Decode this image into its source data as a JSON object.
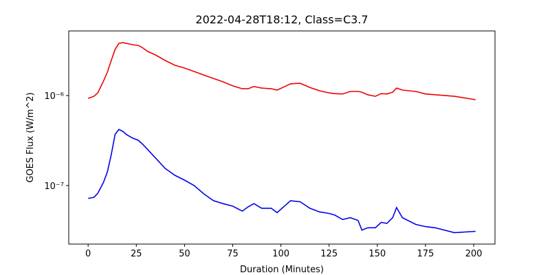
{
  "chart_data": {
    "type": "line",
    "title": "2022-04-28T18:12, Class=C3.7",
    "x_label": "Duration (Minutes)",
    "y_label": "GOES Flux (W/m^2)",
    "log_y": true,
    "x": [
      0,
      3,
      5,
      8,
      10,
      12,
      14,
      16,
      18,
      20,
      23,
      26,
      28,
      31,
      35,
      40,
      45,
      50,
      55,
      60,
      65,
      70,
      75,
      80,
      83,
      86,
      90,
      95,
      98,
      101,
      105,
      110,
      115,
      120,
      125,
      128,
      132,
      136,
      140,
      142,
      145,
      149,
      152,
      155,
      158,
      160,
      163,
      170,
      175,
      180,
      190,
      201
    ],
    "series": [
      {
        "color": "#ee0000",
        "values": [
          9.3e-07,
          9.8e-07,
          1.07e-06,
          1.45e-06,
          1.82e-06,
          2.45e-06,
          3.25e-06,
          3.8e-06,
          3.87e-06,
          3.8e-06,
          3.67e-06,
          3.6e-06,
          3.42e-06,
          3.08e-06,
          2.82e-06,
          2.45e-06,
          2.17e-06,
          2.02e-06,
          1.85e-06,
          1.69e-06,
          1.55e-06,
          1.42e-06,
          1.28e-06,
          1.19e-06,
          1.19e-06,
          1.26e-06,
          1.21e-06,
          1.19e-06,
          1.15e-06,
          1.23e-06,
          1.35e-06,
          1.37e-06,
          1.23e-06,
          1.13e-06,
          1.07e-06,
          1.05e-06,
          1.04e-06,
          1.11e-06,
          1.11e-06,
          1.09e-06,
          1.02e-06,
          9.8e-07,
          1.05e-06,
          1.04e-06,
          1.09e-06,
          1.21e-06,
          1.15e-06,
          1.11e-06,
          1.04e-06,
          1.02e-06,
          9.8e-07,
          9e-07
        ]
      },
      {
        "color": "#0000ee",
        "values": [
          7.2e-08,
          7.4e-08,
          8.2e-08,
          1.09e-07,
          1.42e-07,
          2.2e-07,
          3.7e-07,
          4.2e-07,
          4e-07,
          3.67e-07,
          3.37e-07,
          3.19e-07,
          2.92e-07,
          2.5e-07,
          2.02e-07,
          1.55e-07,
          1.3e-07,
          1.15e-07,
          1e-07,
          8.1e-08,
          6.8e-08,
          6.3e-08,
          5.9e-08,
          5.2e-08,
          5.8e-08,
          6.3e-08,
          5.6e-08,
          5.6e-08,
          5e-08,
          5.7e-08,
          6.8e-08,
          6.6e-08,
          5.6e-08,
          5.1e-08,
          4.9e-08,
          4.7e-08,
          4.2e-08,
          4.4e-08,
          4.1e-08,
          3.2e-08,
          3.4e-08,
          3.4e-08,
          3.9e-08,
          3.8e-08,
          4.4e-08,
          5.7e-08,
          4.4e-08,
          3.7e-08,
          3.5e-08,
          3.4e-08,
          3e-08,
          3.1e-08
        ]
      }
    ],
    "xlim": [
      -10.05,
      211.05
    ],
    "xticks": [
      0,
      25,
      50,
      75,
      100,
      125,
      150,
      175,
      200
    ],
    "ylim": [
      2.24e-08,
      5.22e-06
    ],
    "yticks": [
      {
        "value": 1e-07,
        "label": "10⁻⁷"
      },
      {
        "value": 1e-06,
        "label": "10⁻⁶"
      }
    ]
  }
}
